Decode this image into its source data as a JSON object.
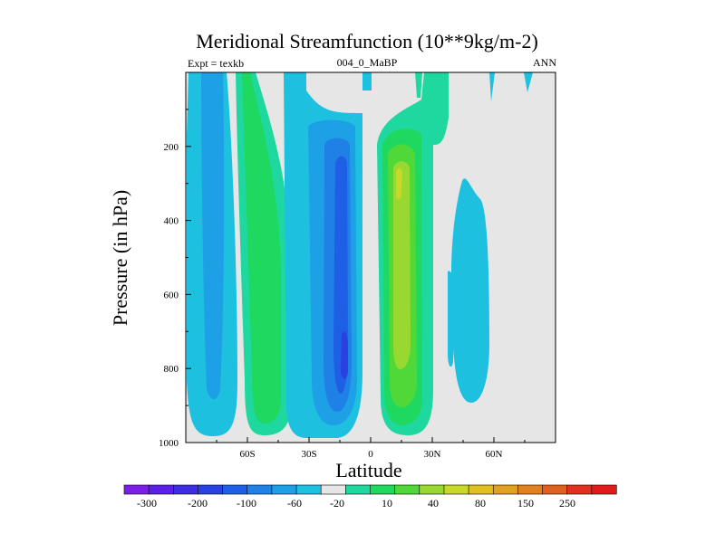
{
  "chart_data": {
    "type": "heatmap",
    "title": "Meridional Streamfunction (10**9kg/m-2)",
    "left_label": "Expt = texkb",
    "center_label": "004_0_MaBP",
    "right_label": "ANN",
    "xlabel": "Latitude",
    "ylabel": "Pressure (in hPa)",
    "xlim": [
      -90,
      90
    ],
    "ylim": [
      1000,
      0
    ],
    "x_ticks": [
      {
        "value": -60,
        "label": "60S"
      },
      {
        "value": -30,
        "label": "30S"
      },
      {
        "value": 0,
        "label": "0"
      },
      {
        "value": 30,
        "label": "30N"
      },
      {
        "value": 60,
        "label": "60N"
      }
    ],
    "y_ticks": [
      {
        "value": 200,
        "label": "200"
      },
      {
        "value": 400,
        "label": "400"
      },
      {
        "value": 600,
        "label": "600"
      },
      {
        "value": 800,
        "label": "800"
      },
      {
        "value": 1000,
        "label": "1000"
      }
    ],
    "colorbar": {
      "colors": [
        "#7a1fe6",
        "#5a20e8",
        "#3d2ce0",
        "#2a40e0",
        "#1f5fe6",
        "#1f80e6",
        "#1ea0e6",
        "#1ec0e0",
        "#e6e6e6",
        "#1ed8a0",
        "#1ed860",
        "#50d838",
        "#98d830",
        "#c8d828",
        "#e0c020",
        "#e0a020",
        "#e08020",
        "#e06020",
        "#e03020",
        "#e01a1a"
      ],
      "tick_labels": [
        "-300",
        "-200",
        "-100",
        "-60",
        "-20",
        "10",
        "40",
        "80",
        "150",
        "250"
      ]
    },
    "cells": [
      {
        "lat_range": [
          -85,
          -70
        ],
        "p_range": [
          0,
          990
        ],
        "value": -20,
        "note": "polar southern cell"
      },
      {
        "lat_range": [
          -67,
          -45
        ],
        "p_range": [
          0,
          980
        ],
        "value": 40,
        "note": "Ferrel cell SH"
      },
      {
        "lat_range": [
          -40,
          -8
        ],
        "p_range": [
          0,
          990
        ],
        "value": -100,
        "note": "Hadley cell SH, min near 800 hPa"
      },
      {
        "lat_range": [
          5,
          25
        ],
        "p_range": [
          0,
          990
        ],
        "value": 80,
        "note": "Hadley cell NH"
      },
      {
        "lat_range": [
          25,
          32
        ],
        "p_range": [
          0,
          160
        ],
        "value": 10,
        "note": "upper NH band"
      },
      {
        "lat_range": [
          40,
          55
        ],
        "p_range": [
          220,
          960
        ],
        "value": -20,
        "note": "Ferrel cell NH"
      }
    ],
    "background_value": 0
  }
}
